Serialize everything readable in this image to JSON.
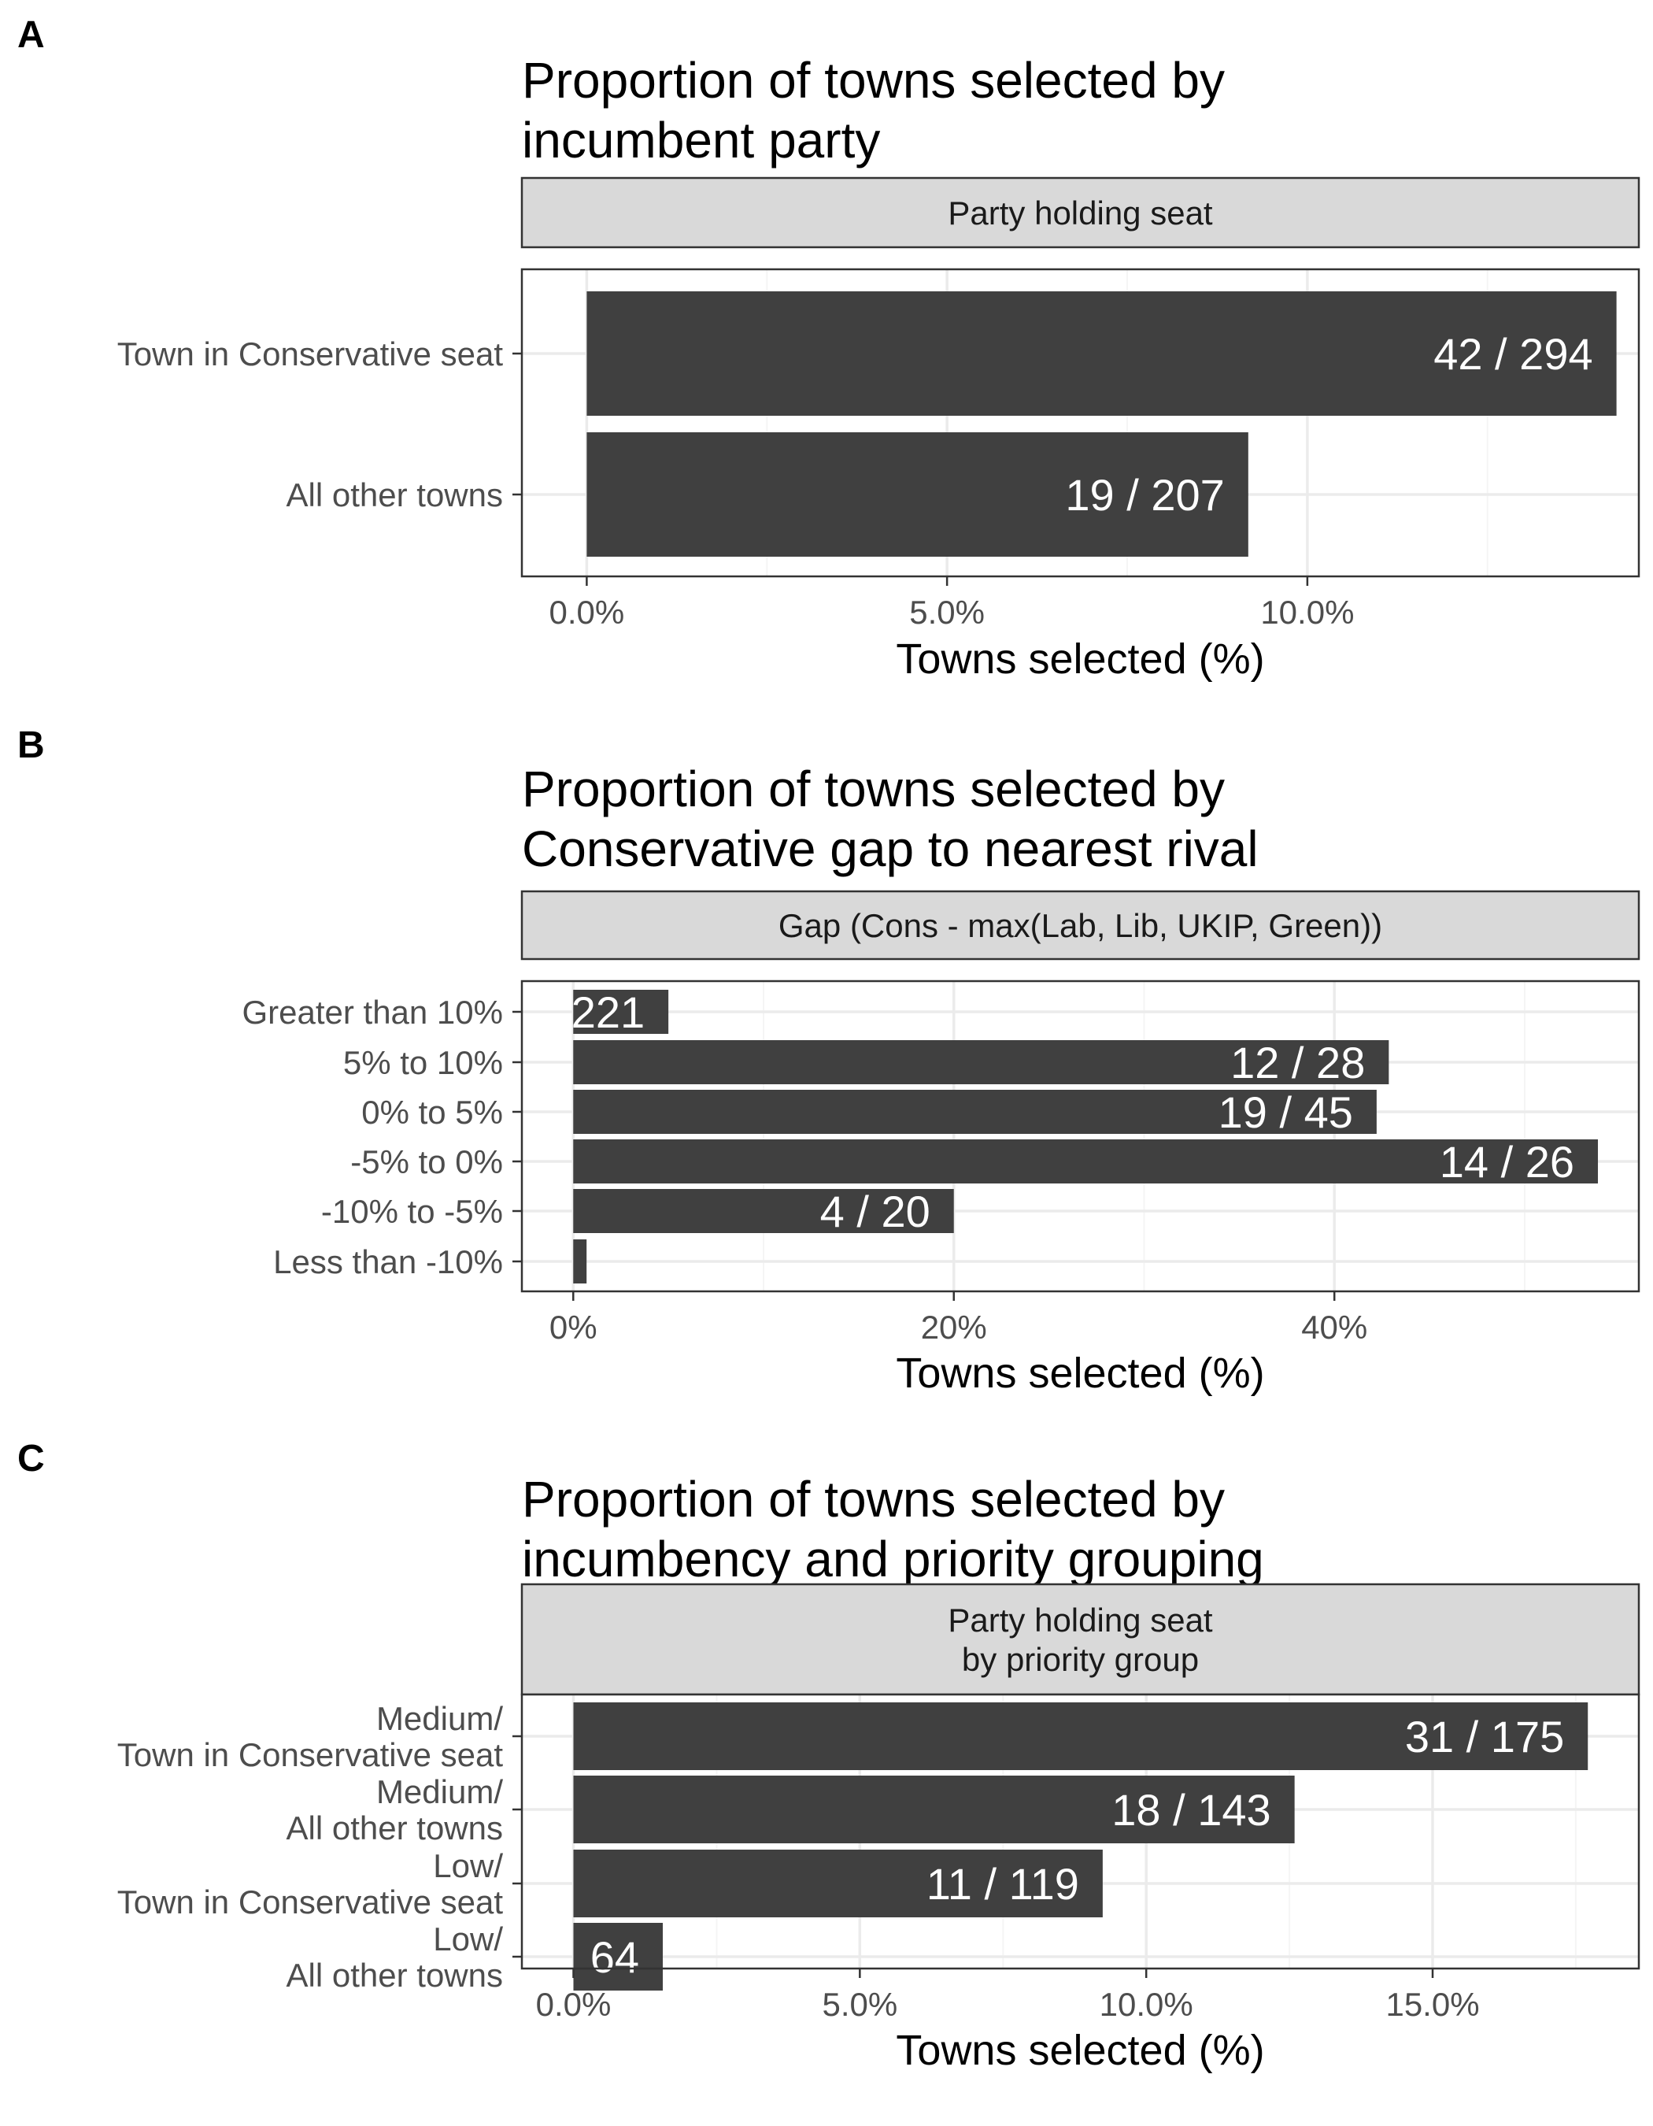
{
  "colors": {
    "bar": "#404040",
    "strip_fill": "#d9d9d9",
    "grid_major": "#ebebeb",
    "grid_minor": "#f5f5f5",
    "panel_border": "#333333",
    "axis_text": "#4d4d4d",
    "bar_label": "#ffffff"
  },
  "chart_data": [
    {
      "panel_tag": "A",
      "type": "bar",
      "orientation": "horizontal",
      "title": "Proportion of towns selected by\nincumbent party",
      "strip": "Party holding seat",
      "xlabel": "Towns selected (%)",
      "categories": [
        "Town in Conservative seat",
        "All other towns"
      ],
      "values": [
        14.29,
        9.18
      ],
      "bar_labels": [
        "42 / 294",
        "19 / 207"
      ],
      "xlim": [
        -0.9,
        14.6
      ],
      "x_ticks": [
        0,
        5,
        10
      ],
      "x_tick_labels": [
        "0.0%",
        "5.0%",
        "10.0%"
      ],
      "minor_ticks": [
        2.5,
        7.5,
        12.5
      ]
    },
    {
      "panel_tag": "B",
      "type": "bar",
      "orientation": "horizontal",
      "title": "Proportion of towns selected by\nConservative gap to nearest rival",
      "strip": "Gap (Cons - max(Lab, Lib, UKIP, Green))",
      "xlabel": "Towns selected (%)",
      "categories": [
        "Greater than 10%",
        "5% to 10%",
        "0% to 5%",
        "-5% to 0%",
        "-10% to -5%",
        "Less than -10%"
      ],
      "values": [
        5.0,
        42.86,
        42.22,
        53.85,
        20.0,
        0.7
      ],
      "bar_labels": [
        "221",
        "12 / 28",
        "19 / 45",
        "14 / 26",
        "4 / 20",
        ""
      ],
      "xlim": [
        -2.7,
        56.0
      ],
      "x_ticks": [
        0,
        20,
        40
      ],
      "x_tick_labels": [
        "0%",
        "20%",
        "40%"
      ],
      "minor_ticks": [
        10,
        30,
        50
      ]
    },
    {
      "panel_tag": "C",
      "type": "bar",
      "orientation": "horizontal",
      "title": "Proportion of towns selected by\nincumbency and priority grouping",
      "strip": "Party holding seat\nby priority group",
      "xlabel": "Towns selected (%)",
      "categories": [
        "Medium/\nTown in Conservative seat",
        "Medium/\nAll other towns",
        "Low/\nTown in Conservative seat",
        "Low/\nAll other towns"
      ],
      "values": [
        17.71,
        12.59,
        9.24,
        1.56
      ],
      "bar_labels": [
        "31 / 175",
        "18 / 143",
        "11 / 119",
        "64"
      ],
      "xlim": [
        -0.9,
        18.6
      ],
      "x_ticks": [
        0,
        5,
        10,
        15
      ],
      "x_tick_labels": [
        "0.0%",
        "5.0%",
        "10.0%",
        "15.0%"
      ],
      "minor_ticks": [
        2.5,
        7.5,
        12.5,
        17.5
      ]
    }
  ]
}
